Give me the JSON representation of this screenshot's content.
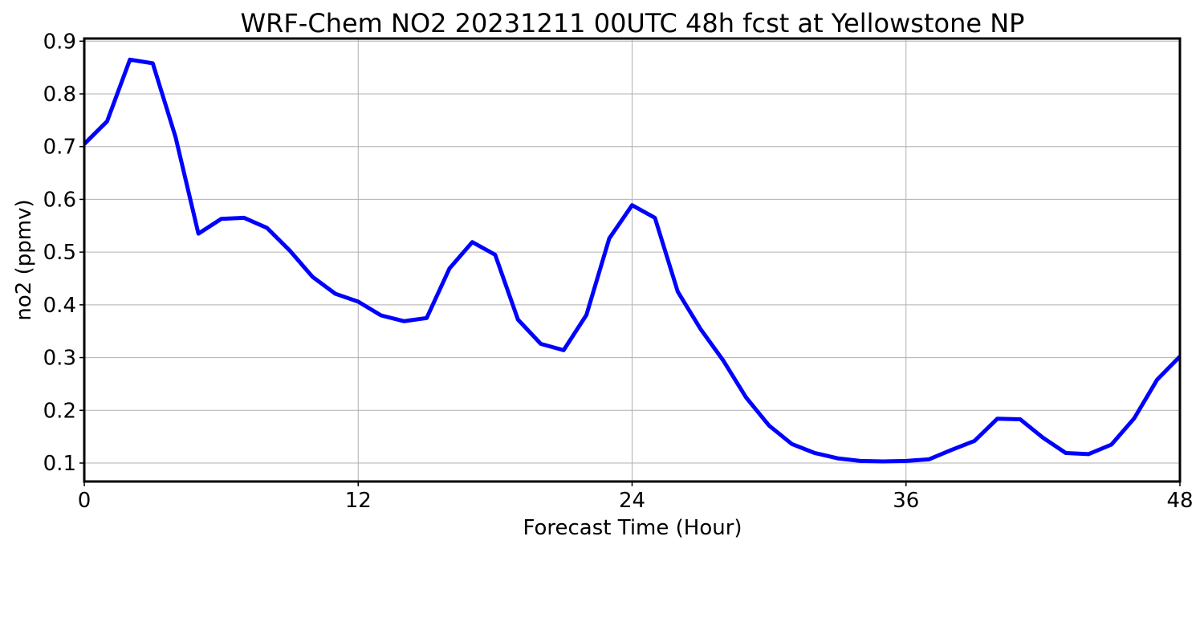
{
  "chart_data": {
    "type": "line",
    "title": "WRF-Chem NO2  20231211 00UTC 48h fcst at Yellowstone NP",
    "xlabel": "Forecast Time (Hour)",
    "ylabel": "no2  (ppmv)",
    "xlim": [
      0,
      48
    ],
    "ylim": [
      0.065,
      0.905
    ],
    "xticks": [
      0,
      12,
      24,
      36,
      48
    ],
    "xtick_labels": [
      "0",
      "12",
      "24",
      "36",
      "48"
    ],
    "yticks": [
      0.1,
      0.2,
      0.3,
      0.4,
      0.5,
      0.6,
      0.7,
      0.8,
      0.9
    ],
    "ytick_labels": [
      "0.1",
      "0.2",
      "0.3",
      "0.4",
      "0.5",
      "0.6",
      "0.7",
      "0.8",
      "0.9"
    ],
    "grid": true,
    "series": [
      {
        "color": "#0000ff",
        "x": [
          0,
          1,
          2,
          3,
          4,
          5,
          6,
          7,
          8,
          9,
          10,
          11,
          12,
          13,
          14,
          15,
          16,
          17,
          18,
          19,
          20,
          21,
          22,
          23,
          24,
          25,
          26,
          27,
          28,
          29,
          30,
          31,
          32,
          33,
          34,
          35,
          36,
          37,
          38,
          39,
          40,
          41,
          42,
          43,
          44,
          45,
          46,
          47,
          48
        ],
        "y": [
          0.705,
          0.748,
          0.865,
          0.858,
          0.718,
          0.535,
          0.563,
          0.565,
          0.546,
          0.503,
          0.453,
          0.421,
          0.406,
          0.38,
          0.369,
          0.375,
          0.469,
          0.519,
          0.495,
          0.372,
          0.326,
          0.314,
          0.381,
          0.526,
          0.589,
          0.565,
          0.425,
          0.354,
          0.294,
          0.224,
          0.171,
          0.136,
          0.119,
          0.109,
          0.104,
          0.103,
          0.104,
          0.107,
          0.125,
          0.142,
          0.184,
          0.183,
          0.148,
          0.119,
          0.117,
          0.135,
          0.185,
          0.258,
          0.302
        ]
      }
    ]
  }
}
